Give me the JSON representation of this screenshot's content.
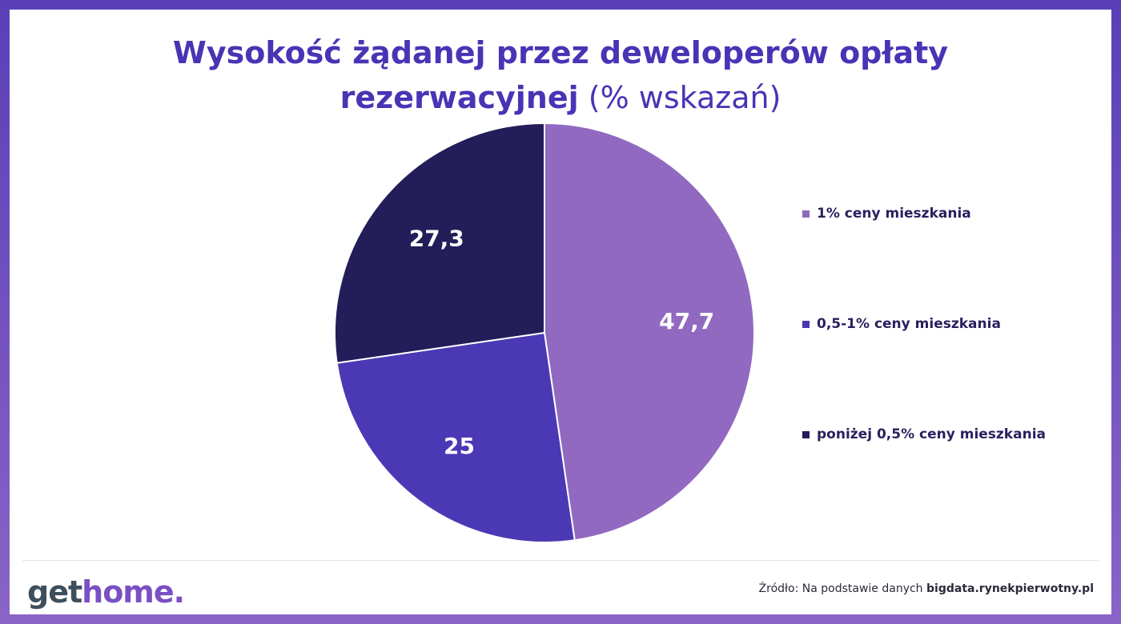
{
  "title": {
    "line1": "Wysokość żądanej przez deweloperów opłaty",
    "line2_bold": "rezerwacyjnej",
    "line2_normal": "(% wskazań)"
  },
  "chart_data": {
    "type": "pie",
    "title": "Wysokość żądanej przez deweloperów opłaty rezerwacyjnej (% wskazań)",
    "legend_position": "right",
    "series": [
      {
        "name": "1% ceny mieszkania",
        "value": 47.7,
        "label": "47,7",
        "color": "#9169c1"
      },
      {
        "name": "0,5-1% ceny mieszkania",
        "value": 25,
        "label": "25",
        "color": "#4a38b4"
      },
      {
        "name": "poniżej 0,5% ceny mieszkania",
        "value": 27.3,
        "label": "27,3",
        "color": "#231d59"
      }
    ]
  },
  "footer": {
    "logo_get": "get",
    "logo_home": "home.",
    "source_prefix": "Źródło: Na podstawie danych",
    "source_domain": "bigdata.rynekpierwotny.pl"
  }
}
